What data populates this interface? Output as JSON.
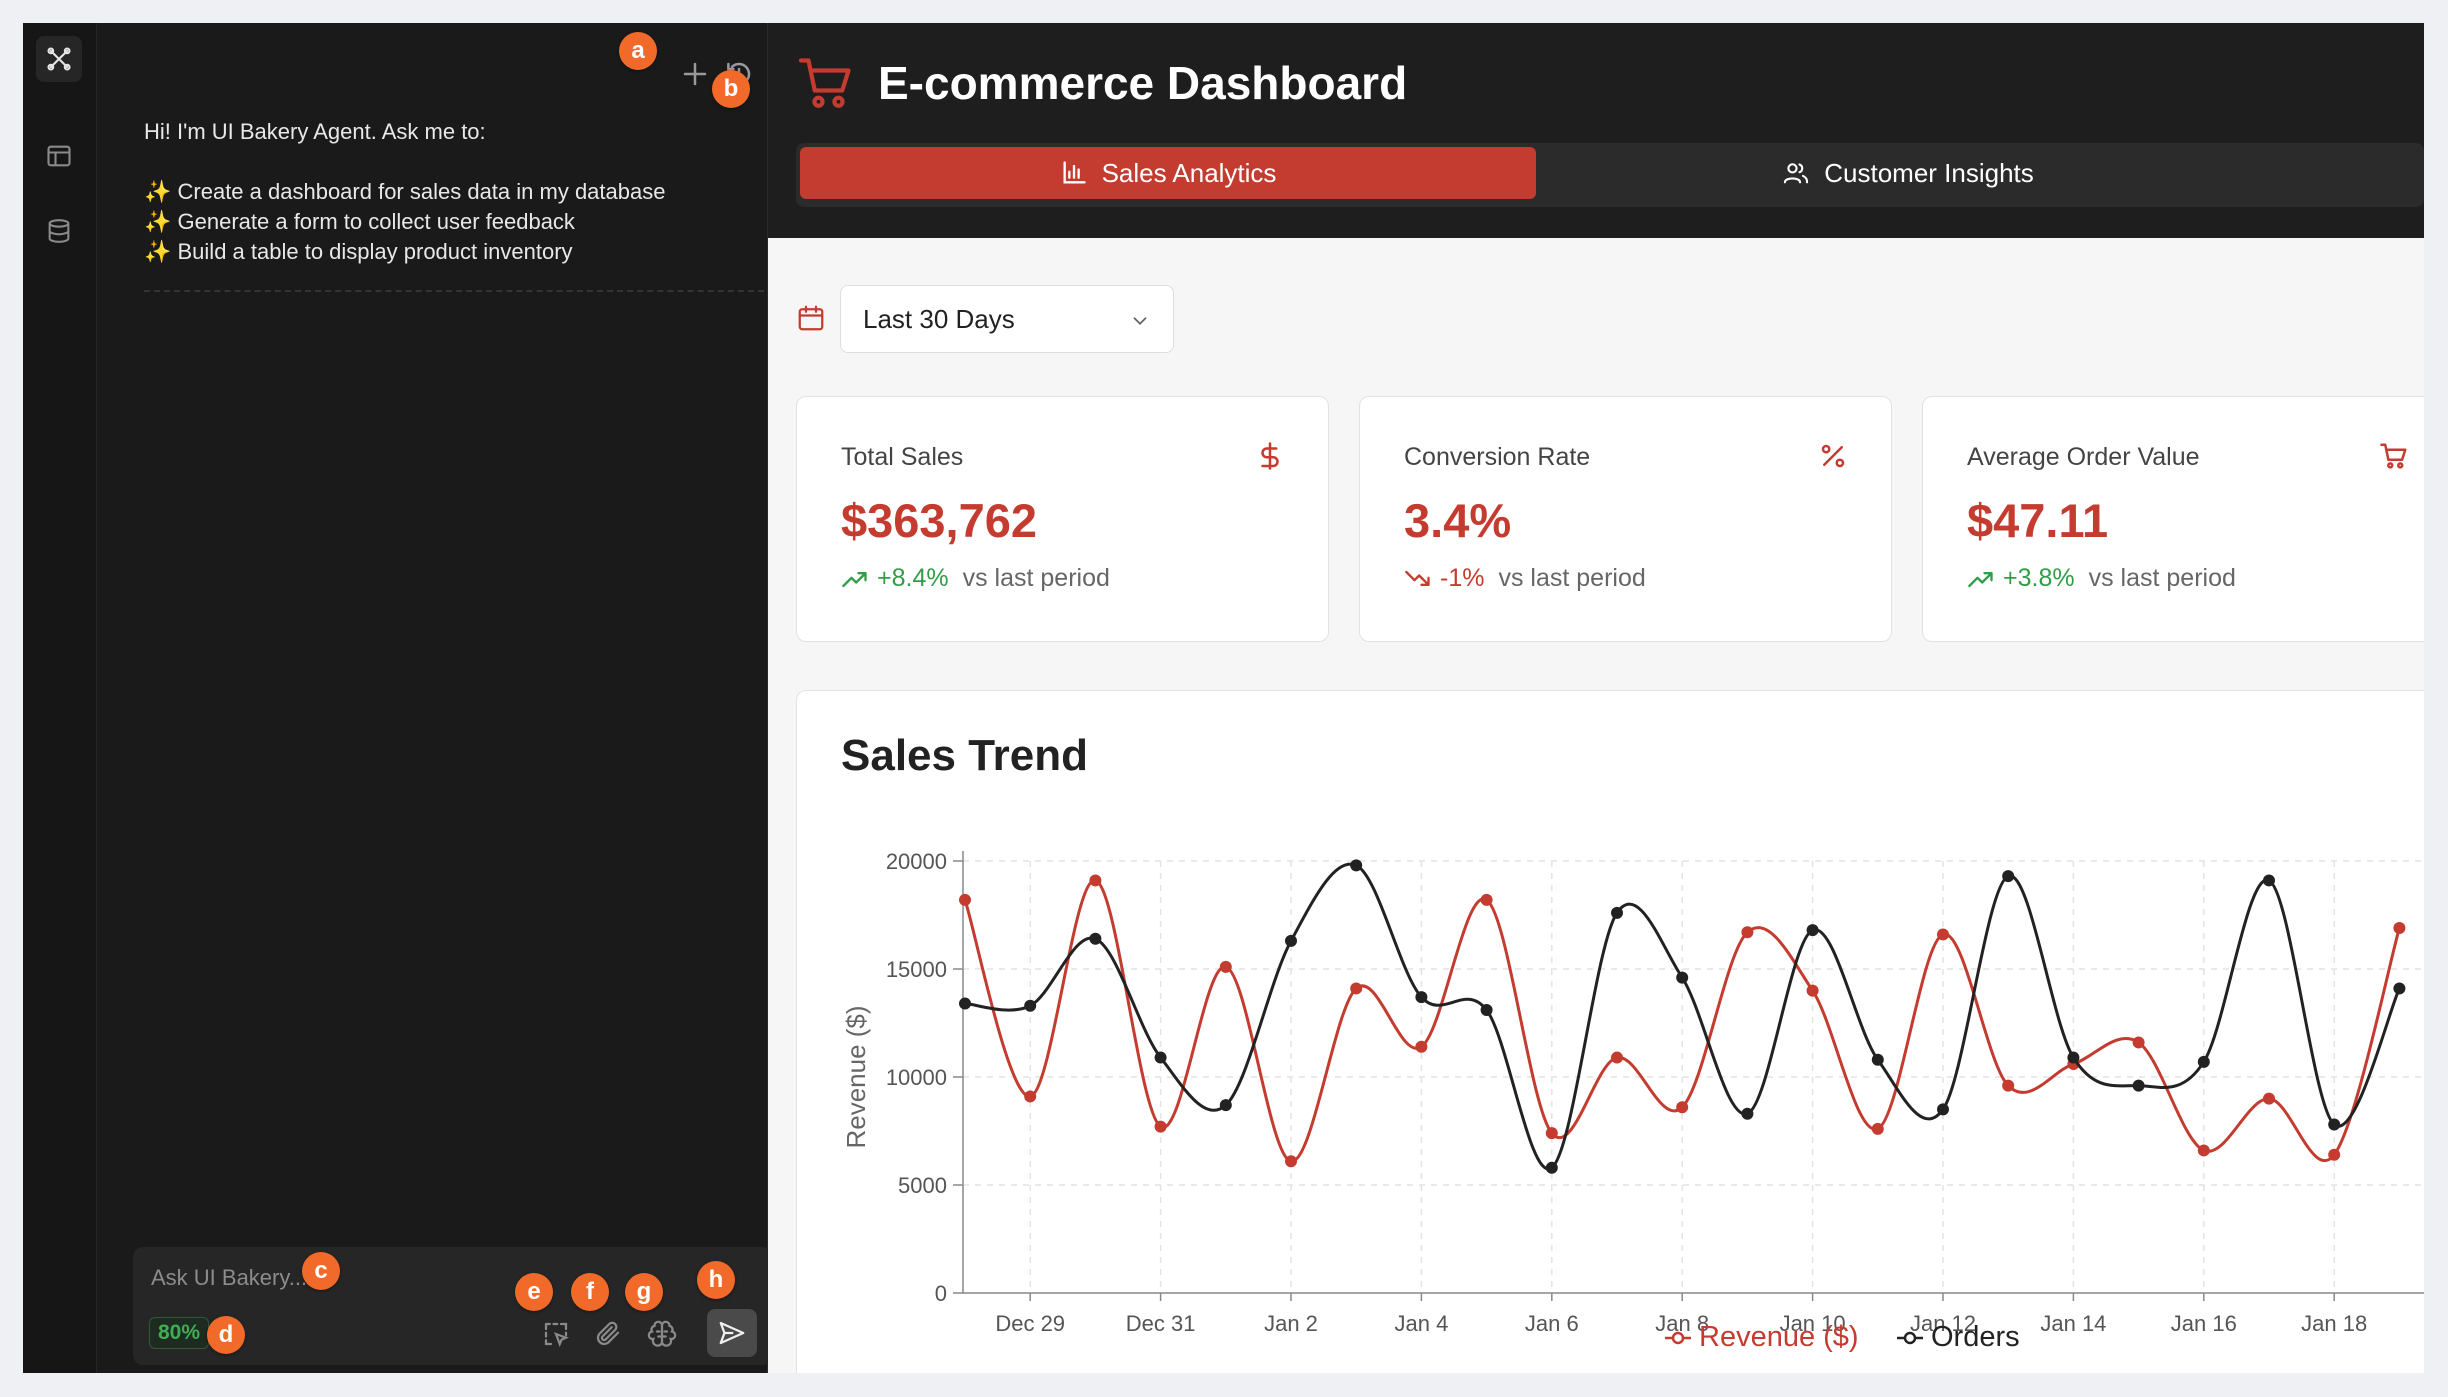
{
  "agent": {
    "greeting": "Hi! I'm UI Bakery Agent. Ask me to:",
    "suggestions": [
      "✨ Create a dashboard for sales data in my database",
      "✨ Generate a form to collect user feedback",
      "✨ Build a table to display product inventory"
    ],
    "input_placeholder": "Ask UI Bakery...",
    "context_usage": "80%"
  },
  "markers": [
    "a",
    "b",
    "c",
    "d",
    "e",
    "f",
    "g",
    "h"
  ],
  "dashboard": {
    "title": "E-commerce Dashboard",
    "tabs": [
      {
        "label": "Sales Analytics",
        "active": true
      },
      {
        "label": "Customer Insights",
        "active": false
      }
    ],
    "date_range": "Last 30 Days",
    "kpis": [
      {
        "label": "Total Sales",
        "value": "$363,762",
        "delta": "+8.4%",
        "direction": "up",
        "suffix": "vs last period",
        "icon": "dollar-icon"
      },
      {
        "label": "Conversion Rate",
        "value": "3.4%",
        "delta": "-1%",
        "direction": "down",
        "suffix": "vs last period",
        "icon": "percent-icon"
      },
      {
        "label": "Average Order Value",
        "value": "$47.11",
        "delta": "+3.8%",
        "direction": "up",
        "suffix": "vs last period",
        "icon": "cart-icon"
      }
    ],
    "colors": {
      "accent": "#c43b2f",
      "positive": "#2f9e47",
      "series_orders": "#222222"
    }
  },
  "chart_data": {
    "type": "line",
    "title": "Sales Trend",
    "ylabel": "Revenue ($)",
    "ylim": [
      0,
      20000
    ],
    "yticks": [
      0,
      5000,
      10000,
      15000,
      20000
    ],
    "x_tick_labels": [
      "Dec 29",
      "Dec 31",
      "Jan 2",
      "Jan 4",
      "Jan 6",
      "Jan 8",
      "Jan 10",
      "Jan 12",
      "Jan 14",
      "Jan 16",
      "Jan 18"
    ],
    "grid": true,
    "legend": "bottom-center",
    "categories": [
      "Dec 28",
      "Dec 29",
      "Dec 30",
      "Dec 31",
      "Jan 1",
      "Jan 2",
      "Jan 3",
      "Jan 4",
      "Jan 5",
      "Jan 6",
      "Jan 7",
      "Jan 8",
      "Jan 9",
      "Jan 10",
      "Jan 11",
      "Jan 12",
      "Jan 13",
      "Jan 14",
      "Jan 15",
      "Jan 16",
      "Jan 17",
      "Jan 18",
      "Jan 19"
    ],
    "series": [
      {
        "name": "Revenue ($)",
        "color": "#c43b2f",
        "values": [
          18200,
          9100,
          19100,
          7700,
          15100,
          6100,
          14100,
          11400,
          18200,
          7400,
          10900,
          8600,
          16700,
          14000,
          7600,
          16600,
          9600,
          10600,
          11600,
          6600,
          9000,
          6400,
          16900
        ]
      },
      {
        "name": "Orders",
        "color": "#222222",
        "values": [
          13400,
          13300,
          16400,
          10900,
          8700,
          16300,
          19800,
          13700,
          13100,
          5800,
          17600,
          14600,
          8300,
          16800,
          10800,
          8500,
          19300,
          10900,
          9600,
          10700,
          19100,
          7800,
          14100
        ]
      }
    ]
  }
}
